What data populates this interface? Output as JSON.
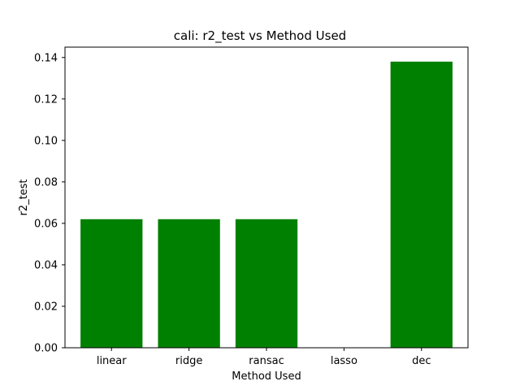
{
  "chart_data": {
    "type": "bar",
    "title": "cali: r2_test vs Method Used",
    "xlabel": "Method Used",
    "ylabel": "r2_test",
    "categories": [
      "linear",
      "ridge",
      "ransac",
      "lasso",
      "dec"
    ],
    "values": [
      0.062,
      0.062,
      0.062,
      0.0,
      0.138
    ],
    "ylim": [
      0,
      0.145
    ],
    "yticks": [
      0.0,
      0.02,
      0.04,
      0.06,
      0.08,
      0.1,
      0.12,
      0.14
    ],
    "ytick_labels": [
      "0.00",
      "0.02",
      "0.04",
      "0.06",
      "0.08",
      "0.10",
      "0.12",
      "0.14"
    ],
    "bar_color": "#008000",
    "grid": false,
    "legend": "none"
  }
}
